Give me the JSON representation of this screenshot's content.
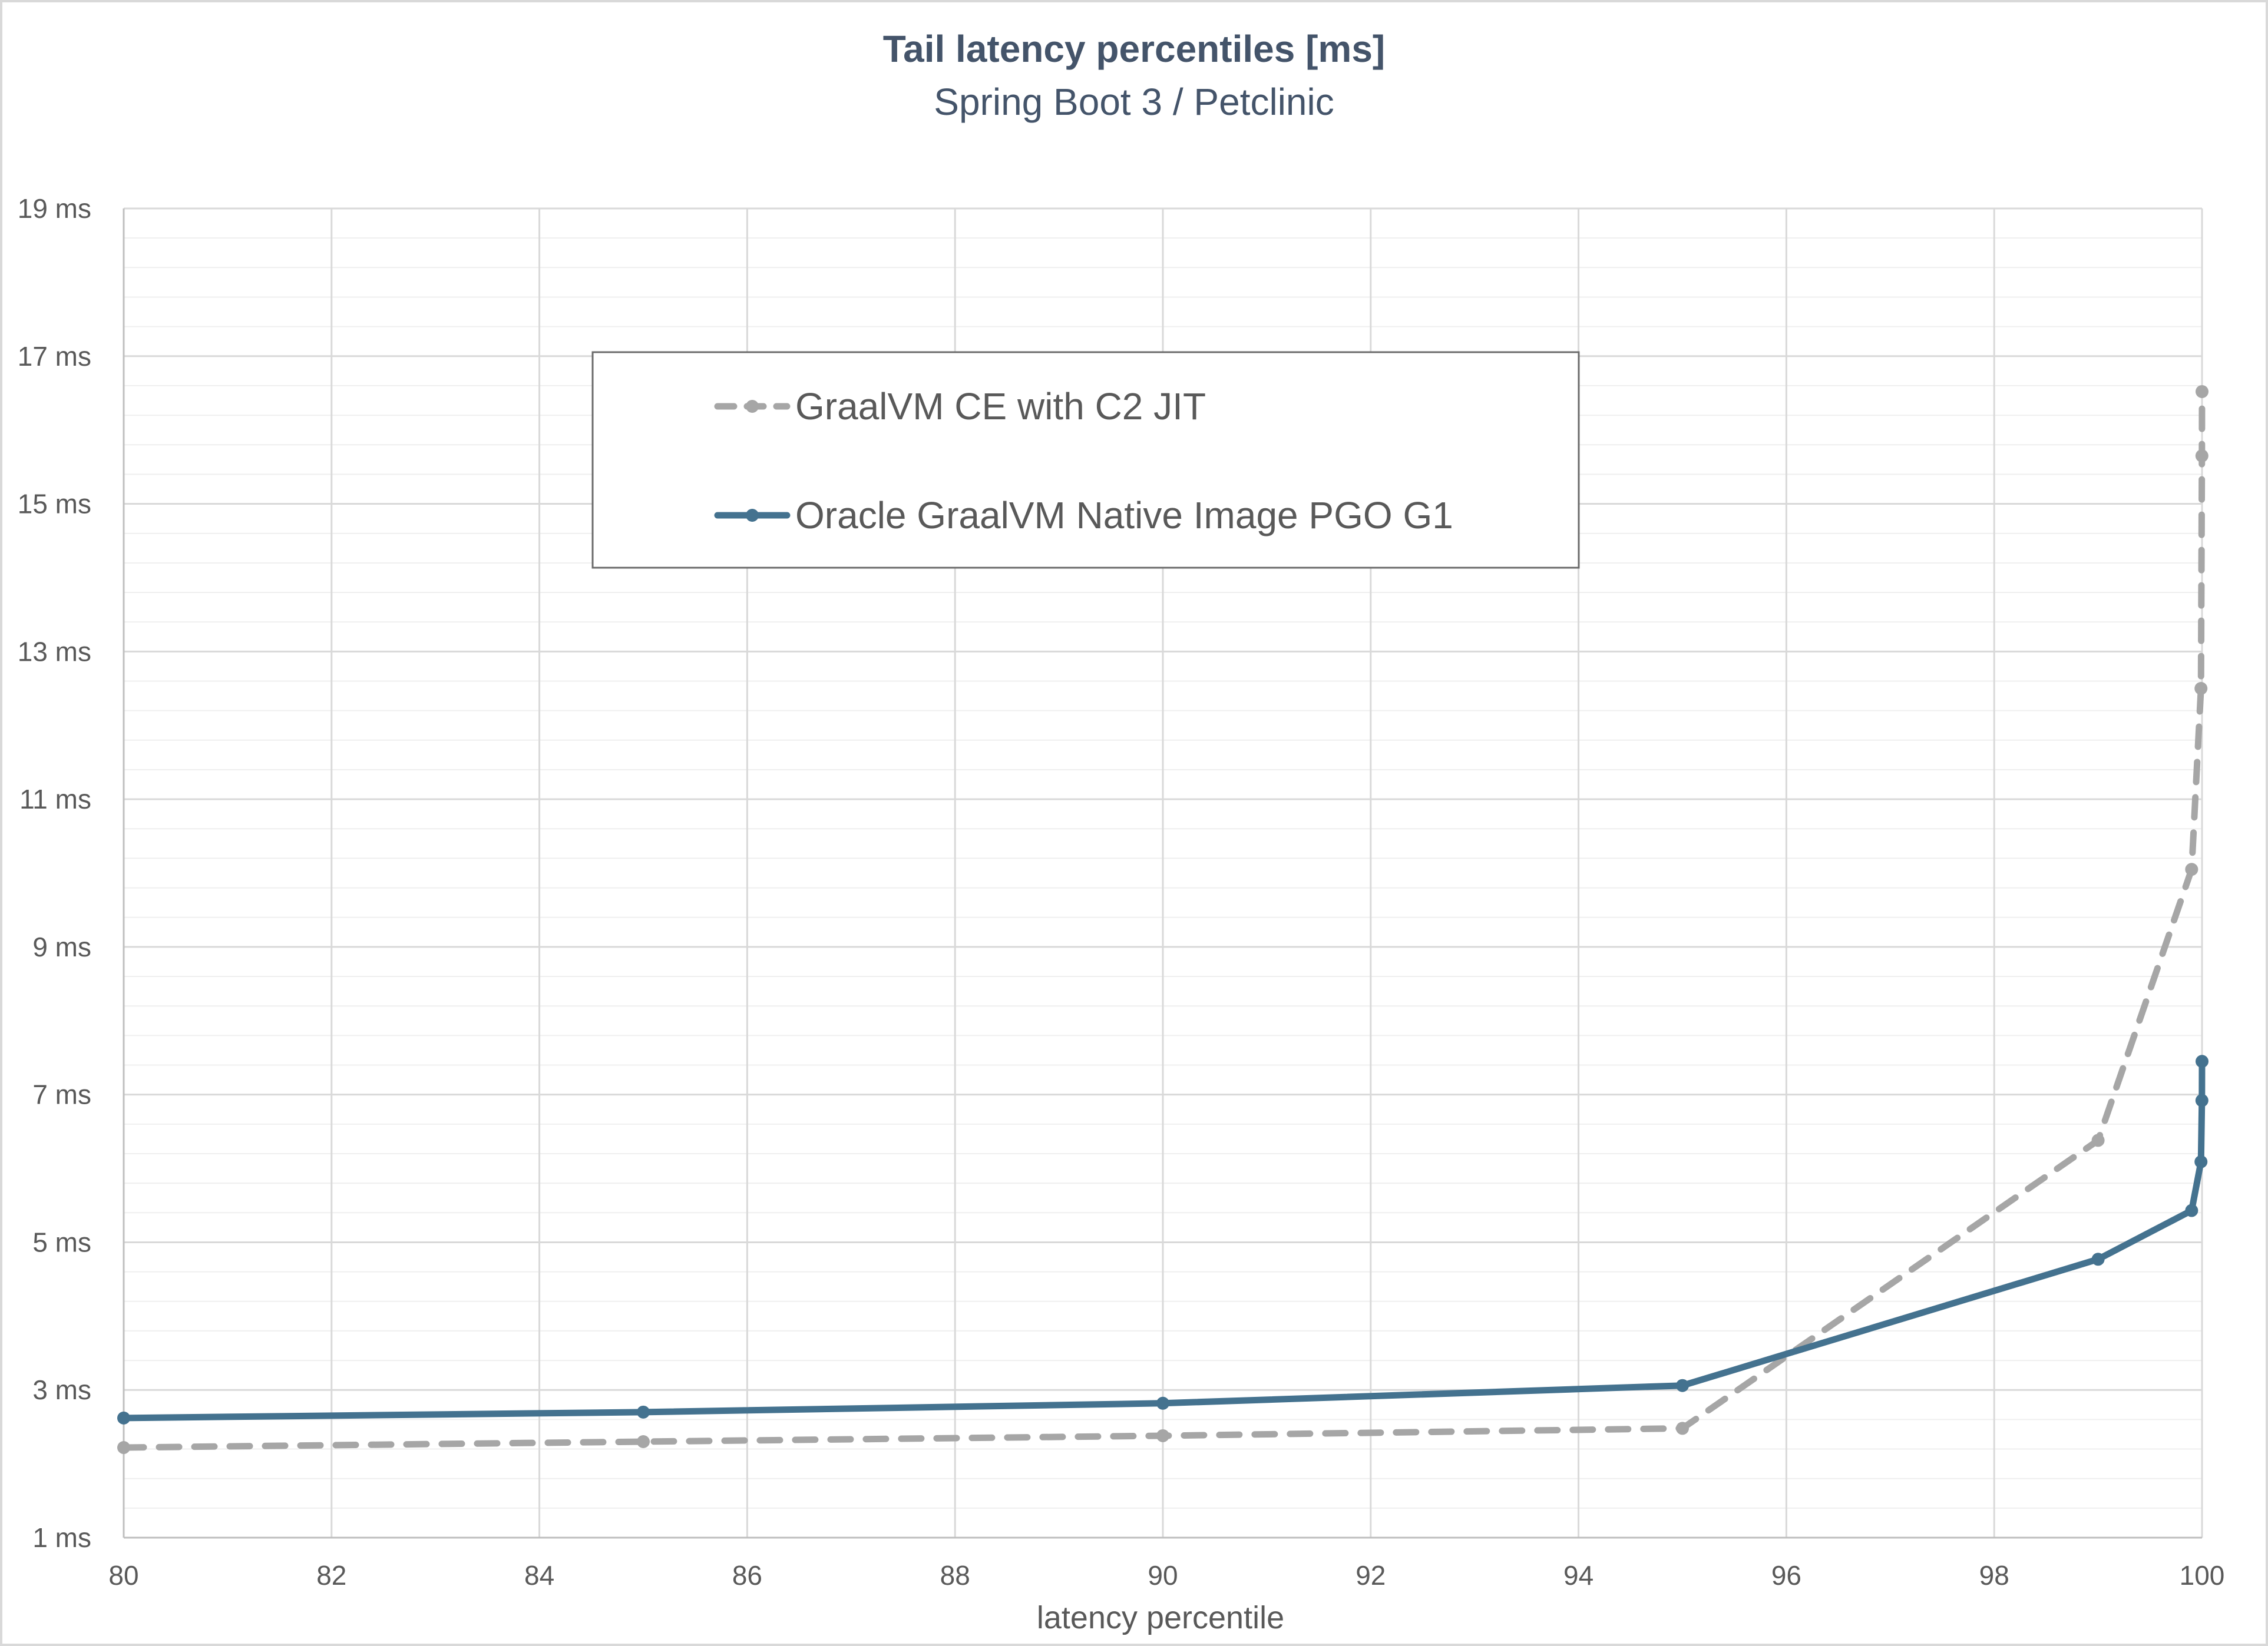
{
  "chart_data": {
    "type": "line",
    "title": "Tail latency percentiles [ms]",
    "subtitle": "Spring Boot 3 / Petclinic",
    "xlabel": "latency percentile",
    "ylabel": "",
    "xlim": [
      80,
      100
    ],
    "ylim": [
      1,
      19
    ],
    "x_ticks": [
      "80",
      "82",
      "84",
      "86",
      "88",
      "90",
      "92",
      "94",
      "96",
      "98",
      "100"
    ],
    "y_ticks": [
      "1 ms",
      "3 ms",
      "5 ms",
      "7 ms",
      "9 ms",
      "11 ms",
      "13 ms",
      "15 ms",
      "17 ms",
      "19 ms"
    ],
    "grid": true,
    "legend_position": "top-center",
    "series": [
      {
        "name": "GraalVM CE with C2 JIT",
        "color": "#a6a6a6",
        "style": "dashed",
        "points": [
          {
            "x": 80,
            "y": 2.22
          },
          {
            "x": 85,
            "y": 2.3
          },
          {
            "x": 90,
            "y": 2.38
          },
          {
            "x": 95,
            "y": 2.48
          },
          {
            "x": 99,
            "y": 6.38
          },
          {
            "x": 99.9,
            "y": 10.05
          },
          {
            "x": 99.99,
            "y": 12.5
          },
          {
            "x": 99.999,
            "y": 15.65
          },
          {
            "x": 100,
            "y": 16.52
          }
        ]
      },
      {
        "name": "Oracle GraalVM Native Image PGO G1",
        "color": "#44728f",
        "style": "solid",
        "points": [
          {
            "x": 80,
            "y": 2.62
          },
          {
            "x": 85,
            "y": 2.7
          },
          {
            "x": 90,
            "y": 2.82
          },
          {
            "x": 95,
            "y": 3.06
          },
          {
            "x": 99,
            "y": 4.77
          },
          {
            "x": 99.9,
            "y": 5.43
          },
          {
            "x": 99.99,
            "y": 6.09
          },
          {
            "x": 99.999,
            "y": 6.92
          },
          {
            "x": 100,
            "y": 7.45
          }
        ]
      }
    ]
  }
}
